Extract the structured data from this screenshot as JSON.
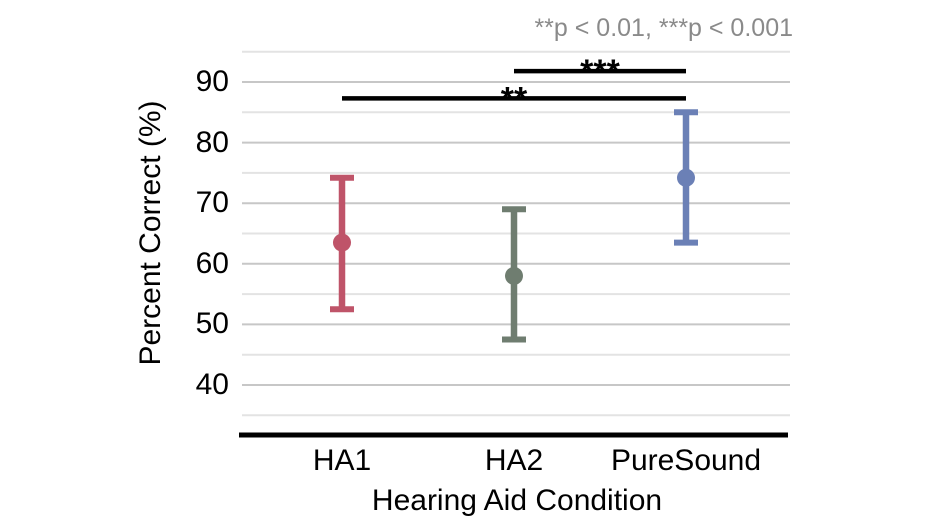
{
  "page": {
    "background": "#ffffff"
  },
  "annotation": {
    "text": "**p < 0.01, ***p < 0.001",
    "color": "#8a8a8a"
  },
  "chart_data": {
    "type": "scatter",
    "subtype": "point_estimates_with_95ci_error_bars",
    "title": "",
    "xlabel": "Hearing Aid Condition",
    "ylabel": "Percent Correct (%)",
    "categories": [
      "HA1",
      "HA2",
      "PureSound"
    ],
    "series": [
      {
        "name": "HA1",
        "mean": 63.5,
        "ci_low": 52.5,
        "ci_high": 74.2,
        "color": "#bf5469"
      },
      {
        "name": "HA2",
        "mean": 58.0,
        "ci_low": 47.5,
        "ci_high": 69.0,
        "color": "#6f7d70"
      },
      {
        "name": "PureSound",
        "mean": 74.2,
        "ci_low": 63.5,
        "ci_high": 85.0,
        "color": "#6b80b6"
      }
    ],
    "y_ticks": [
      90,
      80,
      70,
      60,
      50,
      40
    ],
    "y_grid_range": [
      35,
      95
    ],
    "y_grid_step": 5,
    "ylim": [
      31.5,
      95.5
    ],
    "grid": true,
    "legend": false,
    "significance_brackets": [
      {
        "from": "HA1",
        "to": "PureSound",
        "label": "**",
        "y_value": 87.3
      },
      {
        "from": "HA2",
        "to": "PureSound",
        "label": "***",
        "y_value": 91.8
      }
    ],
    "annotation": "**p < 0.01, ***p < 0.001"
  },
  "style": {
    "axis_color": "#000000",
    "major_grid_color": "#c7c7c7",
    "minor_grid_color": "#e3e3e3",
    "bracket_color": "#000000",
    "annotation_color": "#8a8a8a"
  }
}
